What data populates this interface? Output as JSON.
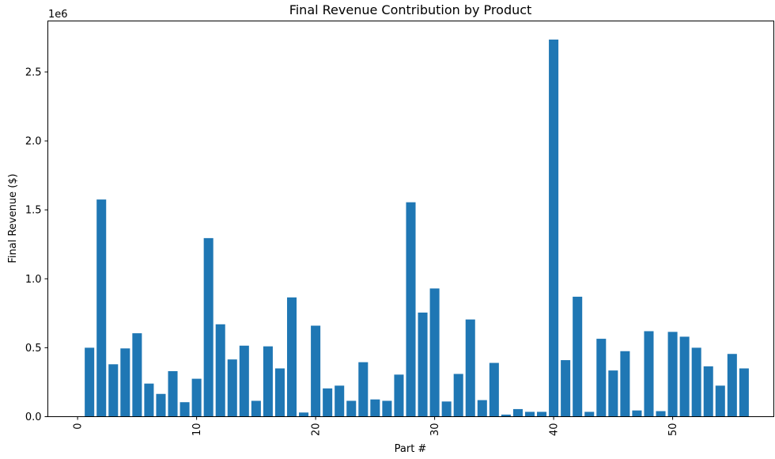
{
  "chart_data": {
    "type": "bar",
    "title": "Final Revenue Contribution by Product",
    "xlabel": "Part #",
    "ylabel": "Final Revenue ($)",
    "y_offset_label": "1e6",
    "x": [
      1,
      2,
      3,
      4,
      5,
      6,
      7,
      8,
      9,
      10,
      11,
      12,
      13,
      14,
      15,
      16,
      17,
      18,
      19,
      20,
      21,
      22,
      23,
      24,
      25,
      26,
      27,
      28,
      29,
      30,
      31,
      32,
      33,
      34,
      35,
      36,
      37,
      38,
      39,
      40,
      41,
      42,
      43,
      44,
      45,
      46,
      47,
      48,
      49,
      50,
      51,
      52,
      53,
      54,
      55,
      56
    ],
    "values": [
      500000,
      1575000,
      380000,
      495000,
      605000,
      240000,
      165000,
      330000,
      105000,
      275000,
      1295000,
      670000,
      415000,
      515000,
      115000,
      510000,
      350000,
      865000,
      30000,
      660000,
      205000,
      225000,
      115000,
      395000,
      125000,
      115000,
      305000,
      1555000,
      755000,
      930000,
      110000,
      310000,
      705000,
      120000,
      390000,
      15000,
      55000,
      35000,
      35000,
      2735000,
      410000,
      870000,
      35000,
      565000,
      335000,
      475000,
      45000,
      620000,
      40000,
      615000,
      580000,
      500000,
      365000,
      225000,
      455000,
      350000
    ],
    "xlim": [
      -2.5,
      58.5
    ],
    "ylim": [
      0,
      2870000
    ],
    "x_ticks": [
      0,
      10,
      20,
      30,
      40,
      50
    ],
    "x_tick_labels": [
      "0",
      "10",
      "20",
      "30",
      "40",
      "50"
    ],
    "y_ticks": [
      0,
      500000,
      1000000,
      1500000,
      2000000,
      2500000
    ],
    "y_tick_labels": [
      "0.0",
      "0.5",
      "1.0",
      "1.5",
      "2.0",
      "2.5"
    ],
    "bar_color": "#1f77b4",
    "grid": false,
    "legend": "none"
  }
}
